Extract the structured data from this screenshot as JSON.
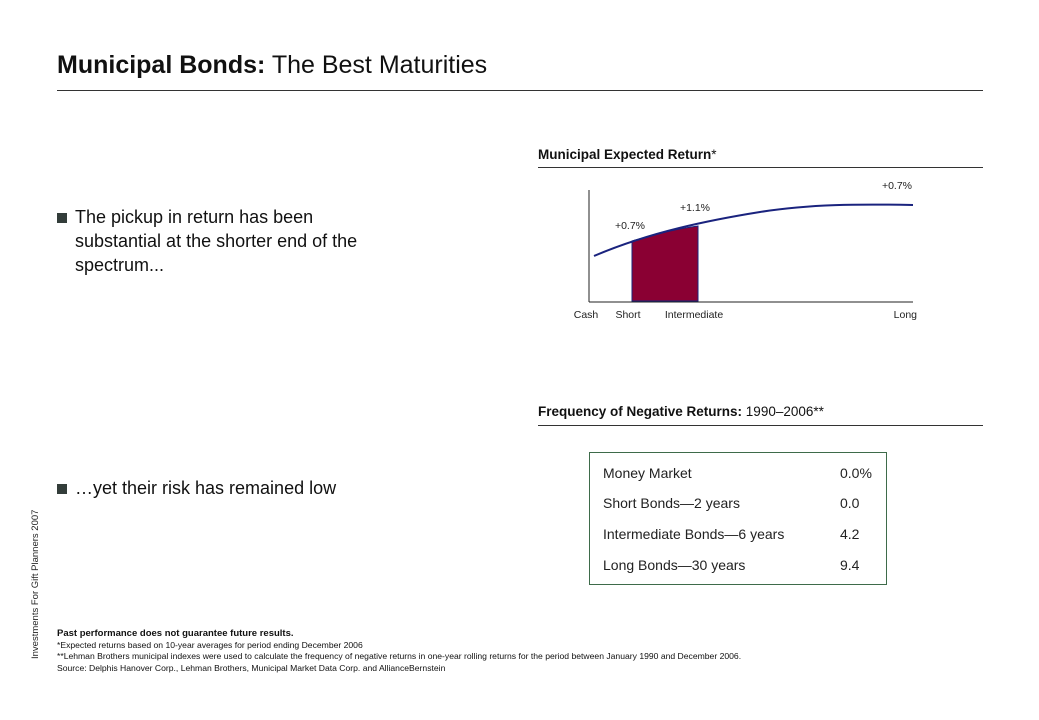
{
  "sidebar": {
    "label": "Investments For Gift Planners 2007"
  },
  "header": {
    "title_bold": "Municipal Bonds:",
    "title_rest": " The Best Maturities"
  },
  "bullets": [
    "The pickup in return has been substantial at the shorter end of the spectrum...",
    "…yet their risk has remained low"
  ],
  "return_section": {
    "title": "Municipal Expected Return",
    "title_suffix": "*"
  },
  "chart_data": {
    "type": "area",
    "title": "Municipal Expected Return*",
    "categories": [
      "Cash",
      "Short",
      "Intermediate",
      "Long"
    ],
    "annotations": [
      "+0.7%",
      "+1.1%",
      "+0.7%"
    ],
    "highlight_region": [
      "Short",
      "Intermediate"
    ],
    "colors": {
      "line": "#1a237e",
      "fill": "#8a0033",
      "axis": "#222222"
    },
    "grid": false
  },
  "frequency_section": {
    "title_bold": "Frequency of Negative Returns:",
    "title_rest": " 1990–2006**",
    "rows": [
      {
        "label": "Money Market",
        "value": "0.0%"
      },
      {
        "label": "Short Bonds—2 years",
        "value": "0.0"
      },
      {
        "label": "Intermediate Bonds—6 years",
        "value": "4.2"
      },
      {
        "label": "Long Bonds—30 years",
        "value": "9.4"
      }
    ],
    "border_color": "#3e6b4a"
  },
  "footnotes": {
    "disclaimer": "Past performance does not guarantee future results.",
    "note1": "*Expected returns based on 10-year averages for period ending December 2006",
    "note2": "**Lehman Brothers municipal indexes were used to calculate the frequency of negative returns in one-year rolling returns for the period between January 1990 and December 2006.",
    "source": "Source: Delphis Hanover Corp., Lehman Brothers, Municipal Market Data Corp. and AllianceBernstein"
  }
}
